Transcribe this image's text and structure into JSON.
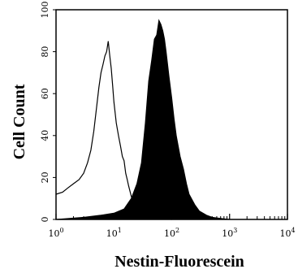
{
  "chart_data": {
    "type": "area",
    "title": "",
    "xlabel": "Nestin-Fluorescein",
    "ylabel": "Cell Count",
    "x_scale": "log",
    "xlim": [
      1,
      10000
    ],
    "ylim": [
      0,
      100
    ],
    "grid": false,
    "legend": "none",
    "x_ticks": [
      {
        "base": "10",
        "exp": "0"
      },
      {
        "base": "10",
        "exp": "1"
      },
      {
        "base": "10",
        "exp": "2"
      },
      {
        "base": "10",
        "exp": "3"
      },
      {
        "base": "10",
        "exp": "4"
      }
    ],
    "x_tick_values": [
      1,
      10,
      100,
      1000,
      10000
    ],
    "y_ticks": [
      "0",
      "20",
      "40",
      "60",
      "80",
      "100"
    ],
    "y_tick_values": [
      0,
      20,
      40,
      60,
      80,
      100
    ],
    "series": [
      {
        "style": "outline",
        "color": "#000000",
        "x": [
          1,
          1.3,
          1.6,
          2,
          2.5,
          3,
          3.5,
          4,
          4.5,
          5,
          5.5,
          6,
          6.5,
          7,
          7.5,
          8,
          8.5,
          9,
          9.5,
          10,
          11,
          12,
          13,
          14,
          15,
          16,
          17,
          18,
          20,
          22,
          25,
          30,
          40,
          60,
          100
        ],
        "y": [
          12,
          13,
          15,
          17,
          19,
          22,
          27,
          33,
          42,
          53,
          63,
          70,
          74,
          78,
          80,
          85,
          78,
          72,
          64,
          56,
          46,
          40,
          35,
          30,
          28,
          22,
          19,
          16,
          11,
          6,
          4,
          2,
          1,
          0.5,
          0
        ]
      },
      {
        "style": "filled",
        "color": "#000000",
        "x": [
          1,
          3,
          6,
          10,
          15,
          20,
          25,
          30,
          35,
          40,
          45,
          50,
          55,
          60,
          65,
          70,
          75,
          80,
          90,
          100,
          110,
          120,
          140,
          160,
          180,
          200,
          250,
          300,
          400,
          500,
          700,
          1000,
          10000
        ],
        "y": [
          0,
          1,
          2,
          3,
          5,
          10,
          17,
          27,
          46,
          66,
          76,
          86,
          88,
          95,
          93,
          90,
          86,
          80,
          68,
          58,
          48,
          40,
          30,
          24,
          17,
          12,
          7,
          4,
          2,
          1,
          0.5,
          0,
          0
        ]
      }
    ]
  }
}
